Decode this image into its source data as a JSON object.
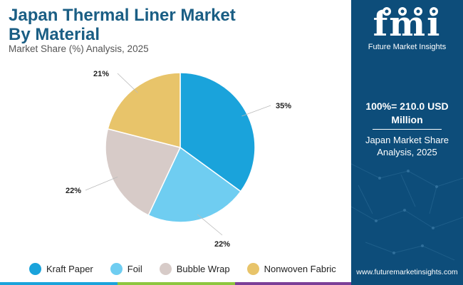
{
  "header": {
    "title_line1": "Japan Thermal Liner Market",
    "title_line2": "By Material",
    "subtitle": "Market Share (%) Analysis, 2025"
  },
  "chart_data": {
    "type": "pie",
    "title": "Japan Thermal Liner Market By Material",
    "subtitle": "Market Share (%) Analysis, 2025",
    "slices": [
      {
        "label": "Kraft Paper",
        "value": 35,
        "display": "35%",
        "color": "#1aa3db"
      },
      {
        "label": "Foil",
        "value": 22,
        "display": "22%",
        "color": "#6fcdf1"
      },
      {
        "label": "Bubble Wrap",
        "value": 22,
        "display": "22%",
        "color": "#d7cbc8"
      },
      {
        "label": "Nonwoven Fabric",
        "value": 21,
        "display": "21%",
        "color": "#e8c46a"
      }
    ],
    "legend_position": "bottom"
  },
  "sidebar": {
    "logo_mark": "fmi",
    "logo_text": "Future Market Insights",
    "total_value": "100%= 210.0 USD Million",
    "note": "Japan Market Share Analysis, 2025",
    "url": "www.futuremarketinsights.com"
  },
  "colors": {
    "title": "#1a5e84",
    "sidebar_bg": "#0d4d7a",
    "bottom_bar": [
      "#1aa3db",
      "#8dc63f",
      "#7b3f98"
    ]
  }
}
